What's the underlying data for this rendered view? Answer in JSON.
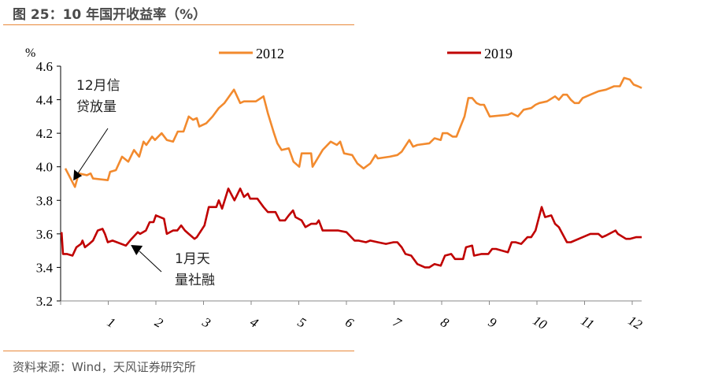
{
  "title": "图 25：10 年国开收益率（%）",
  "source": "资料来源：Wind，天风证券研究所",
  "annotations": [
    {
      "text": "12月信\n贷放量",
      "x": 0.3,
      "y": 3.88
    },
    {
      "text": "1月天\n量社融",
      "x": 1.54,
      "y": 3.51
    }
  ],
  "chart_data": {
    "type": "line",
    "title": "",
    "ylabel": "%",
    "xlabel": "",
    "xlim": [
      0,
      12.2
    ],
    "ylim": [
      3.2,
      4.6
    ],
    "yticks": [
      "3.2",
      "3.4",
      "3.6",
      "3.8",
      "4.0",
      "4.2",
      "4.4",
      "4.6"
    ],
    "xticks": [
      "1",
      "2",
      "3",
      "4",
      "5",
      "6",
      "7",
      "8",
      "9",
      "10",
      "11",
      "12"
    ],
    "grid": false,
    "legend": "top",
    "series": [
      {
        "name": "2012",
        "color": "#f28a2e",
        "x": [
          0.1,
          0.3,
          0.38,
          0.55,
          0.63,
          0.68,
          0.99,
          1.04,
          1.16,
          1.29,
          1.42,
          1.54,
          1.65,
          1.74,
          1.8,
          1.92,
          1.98,
          2.12,
          2.23,
          2.36,
          2.46,
          2.58,
          2.69,
          2.78,
          2.86,
          2.91,
          3.06,
          3.19,
          3.32,
          3.44,
          3.64,
          3.77,
          3.85,
          4.1,
          4.26,
          4.35,
          4.48,
          4.55,
          4.64,
          4.79,
          4.89,
          5.01,
          5.06,
          5.26,
          5.29,
          5.5,
          5.67,
          5.8,
          5.87,
          5.95,
          6.12,
          6.23,
          6.36,
          6.5,
          6.61,
          6.66,
          6.91,
          7.07,
          7.16,
          7.32,
          7.4,
          7.49,
          7.74,
          7.85,
          7.98,
          8.02,
          8.12,
          8.23,
          8.31,
          8.48,
          8.56,
          8.64,
          8.73,
          8.81,
          8.89,
          9.01,
          9.39,
          9.47,
          9.6,
          9.72,
          9.88,
          9.97,
          10.05,
          10.21,
          10.38,
          10.46,
          10.55,
          10.63,
          10.71,
          10.79,
          10.88,
          10.96,
          11.12,
          11.29,
          11.45,
          11.62,
          11.74,
          11.83,
          11.95,
          12.03,
          12.12,
          12.2
        ],
        "y": [
          3.99,
          3.88,
          3.96,
          3.95,
          3.96,
          3.93,
          3.92,
          3.97,
          3.98,
          4.06,
          4.03,
          4.1,
          4.06,
          4.15,
          4.13,
          4.18,
          4.16,
          4.2,
          4.16,
          4.15,
          4.21,
          4.21,
          4.3,
          4.28,
          4.29,
          4.24,
          4.26,
          4.3,
          4.35,
          4.38,
          4.46,
          4.38,
          4.39,
          4.39,
          4.42,
          4.32,
          4.2,
          4.14,
          4.1,
          4.11,
          4.03,
          4.0,
          4.08,
          4.08,
          4.0,
          4.1,
          4.15,
          4.13,
          4.15,
          4.08,
          4.07,
          4.02,
          3.99,
          4.02,
          4.07,
          4.05,
          4.06,
          4.07,
          4.09,
          4.16,
          4.12,
          4.13,
          4.14,
          4.17,
          4.16,
          4.2,
          4.2,
          4.18,
          4.18,
          4.3,
          4.41,
          4.41,
          4.38,
          4.37,
          4.37,
          4.3,
          4.31,
          4.32,
          4.3,
          4.34,
          4.35,
          4.37,
          4.38,
          4.39,
          4.42,
          4.4,
          4.43,
          4.43,
          4.4,
          4.38,
          4.38,
          4.41,
          4.43,
          4.45,
          4.46,
          4.48,
          4.48,
          4.53,
          4.52,
          4.49,
          4.48,
          4.47
        ]
      },
      {
        "name": "2019",
        "color": "#c00000",
        "x": [
          0.02,
          0.05,
          0.13,
          0.25,
          0.33,
          0.43,
          0.46,
          0.51,
          0.6,
          0.68,
          0.78,
          0.88,
          0.93,
          0.99,
          1.09,
          1.37,
          1.49,
          1.62,
          1.67,
          1.79,
          1.87,
          1.95,
          2.0,
          2.17,
          2.23,
          2.36,
          2.45,
          2.53,
          2.61,
          2.69,
          2.81,
          2.86,
          3.02,
          3.11,
          3.27,
          3.32,
          3.39,
          3.52,
          3.65,
          3.77,
          3.85,
          3.93,
          3.98,
          4.13,
          4.26,
          4.35,
          4.43,
          4.51,
          4.6,
          4.71,
          4.79,
          4.88,
          4.93,
          5.06,
          5.14,
          5.26,
          5.37,
          5.42,
          5.5,
          5.67,
          5.83,
          6.0,
          6.17,
          6.25,
          6.41,
          6.5,
          6.66,
          6.83,
          6.99,
          7.07,
          7.16,
          7.24,
          7.36,
          7.49,
          7.65,
          7.74,
          7.85,
          7.98,
          8.07,
          8.2,
          8.28,
          8.45,
          8.51,
          8.64,
          8.68,
          8.84,
          8.98,
          9.06,
          9.14,
          9.39,
          9.47,
          9.55,
          9.67,
          9.8,
          9.88,
          9.97,
          10.1,
          10.17,
          10.3,
          10.38,
          10.46,
          10.63,
          10.71,
          10.96,
          11.12,
          11.29,
          11.37,
          11.45,
          11.65,
          11.7,
          11.87,
          11.95,
          12.08,
          12.2
        ],
        "y": [
          3.61,
          3.48,
          3.48,
          3.47,
          3.52,
          3.54,
          3.56,
          3.52,
          3.54,
          3.56,
          3.62,
          3.63,
          3.6,
          3.55,
          3.56,
          3.53,
          3.57,
          3.61,
          3.6,
          3.62,
          3.67,
          3.67,
          3.71,
          3.69,
          3.6,
          3.62,
          3.62,
          3.65,
          3.62,
          3.6,
          3.57,
          3.58,
          3.65,
          3.76,
          3.76,
          3.8,
          3.75,
          3.87,
          3.8,
          3.87,
          3.82,
          3.84,
          3.81,
          3.81,
          3.76,
          3.73,
          3.73,
          3.73,
          3.68,
          3.68,
          3.71,
          3.74,
          3.7,
          3.68,
          3.64,
          3.66,
          3.66,
          3.68,
          3.62,
          3.62,
          3.62,
          3.61,
          3.56,
          3.56,
          3.55,
          3.56,
          3.55,
          3.54,
          3.55,
          3.55,
          3.52,
          3.48,
          3.47,
          3.42,
          3.4,
          3.4,
          3.42,
          3.41,
          3.47,
          3.48,
          3.45,
          3.45,
          3.52,
          3.53,
          3.47,
          3.48,
          3.48,
          3.51,
          3.51,
          3.49,
          3.55,
          3.55,
          3.54,
          3.58,
          3.58,
          3.62,
          3.76,
          3.7,
          3.71,
          3.66,
          3.64,
          3.55,
          3.55,
          3.58,
          3.6,
          3.6,
          3.58,
          3.59,
          3.62,
          3.6,
          3.57,
          3.57,
          3.58,
          3.58
        ]
      }
    ]
  }
}
